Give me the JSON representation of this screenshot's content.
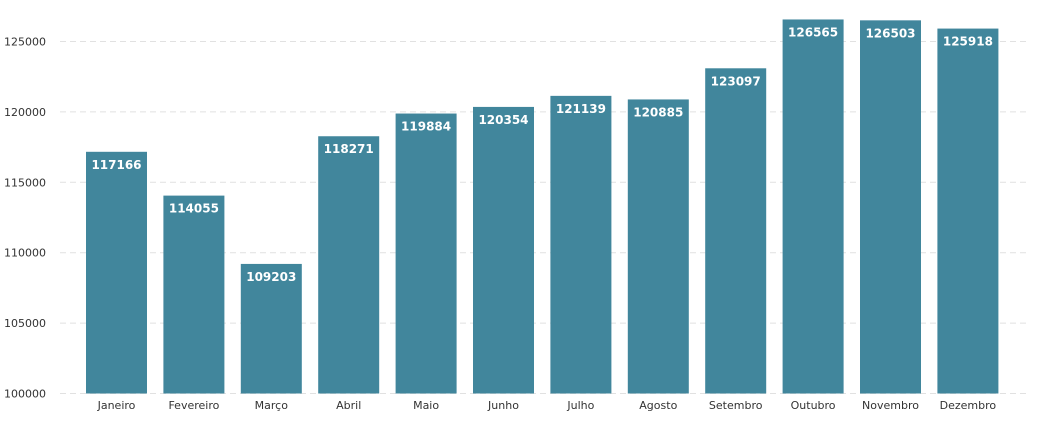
{
  "chart_data": {
    "type": "bar",
    "categories": [
      "Janeiro",
      "Fevereiro",
      "Março",
      "Abril",
      "Maio",
      "Junho",
      "Julho",
      "Agosto",
      "Setembro",
      "Outubro",
      "Novembro",
      "Dezembro"
    ],
    "values": [
      117166,
      114055,
      109203,
      118271,
      119884,
      120354,
      121139,
      120885,
      123097,
      126565,
      126503,
      125918
    ],
    "data_labels": [
      "117166",
      "114055",
      "109203",
      "118271",
      "119884",
      "120354",
      "121139",
      "120885",
      "123097",
      "126565",
      "126503",
      "125918"
    ],
    "yticks": [
      100000,
      105000,
      110000,
      115000,
      120000,
      125000
    ],
    "ytick_labels": [
      "100000",
      "105000",
      "110000",
      "115000",
      "120000",
      "125000"
    ],
    "ylim": [
      100000,
      127000
    ],
    "grid": true,
    "grid_style": "dashed",
    "legend": "none",
    "bar_color": "#41869c",
    "title": "",
    "xlabel": "",
    "ylabel": ""
  }
}
